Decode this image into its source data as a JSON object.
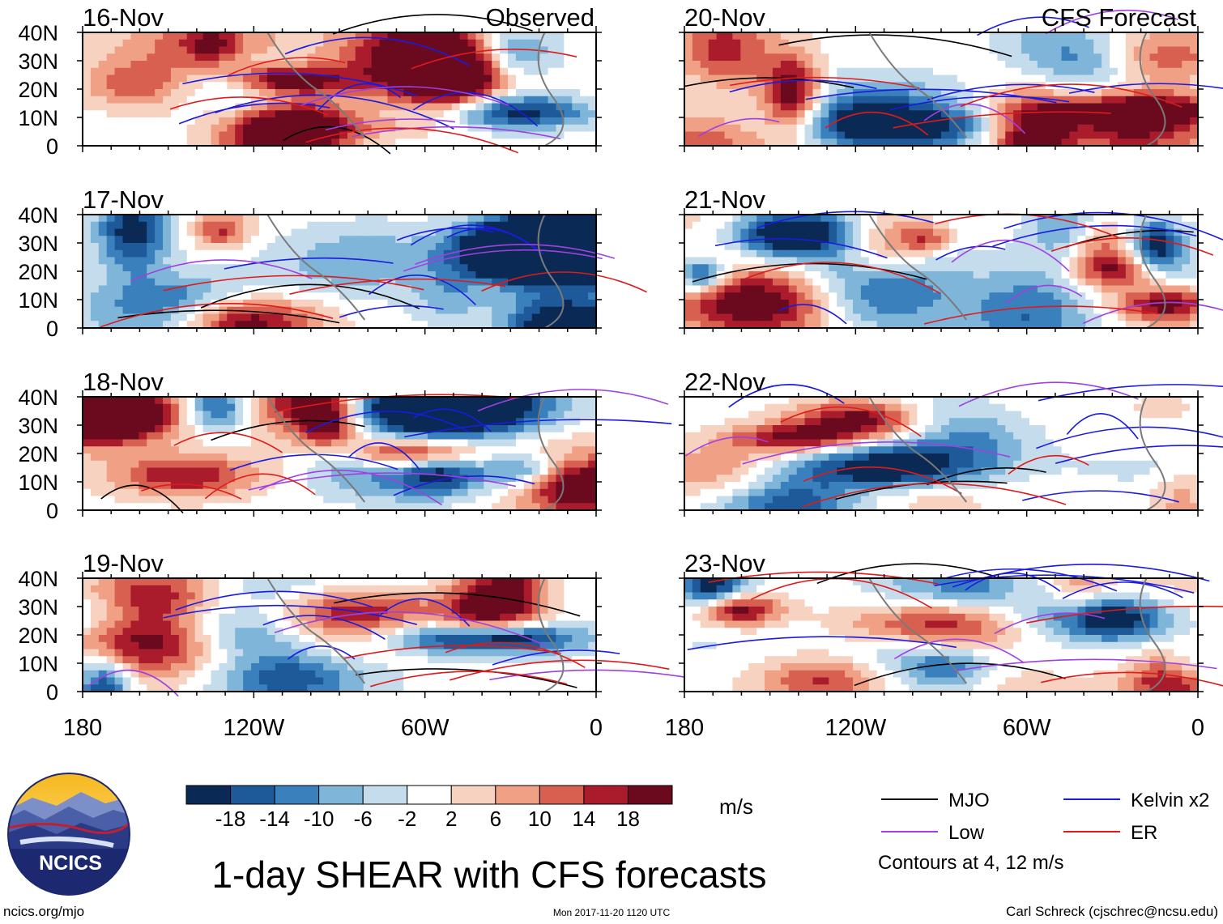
{
  "chart_data": {
    "type": "heatmap",
    "title": "1-day SHEAR with CFS forecasts",
    "variable_units": "m/s",
    "colorbar": {
      "ticks": [
        "-18",
        "-14",
        "-10",
        "-6",
        "-2",
        "2",
        "6",
        "10",
        "14",
        "18"
      ],
      "colors": [
        "#0a2a55",
        "#1e5a9a",
        "#3a80bc",
        "#7fb5d8",
        "#c4dcec",
        "#ffffff",
        "#f8d2c0",
        "#f0a084",
        "#d86050",
        "#aa1c2c",
        "#6b0a1e"
      ]
    },
    "latitude_ticks": [
      "40N",
      "30N",
      "20N",
      "10N",
      "0"
    ],
    "lat_range": [
      0,
      40
    ],
    "longitude_ticks": [
      "180",
      "120W",
      "60W",
      "0"
    ],
    "lon_range": [
      -180,
      0
    ],
    "panel_labels": {
      "observed": "Observed",
      "forecast": "CFS Forecast"
    },
    "panels": [
      {
        "date": "16-Nov",
        "kind": "observed"
      },
      {
        "date": "17-Nov",
        "kind": "observed"
      },
      {
        "date": "18-Nov",
        "kind": "observed"
      },
      {
        "date": "19-Nov",
        "kind": "observed"
      },
      {
        "date": "20-Nov",
        "kind": "forecast"
      },
      {
        "date": "21-Nov",
        "kind": "forecast"
      },
      {
        "date": "22-Nov",
        "kind": "forecast"
      },
      {
        "date": "23-Nov",
        "kind": "forecast"
      }
    ],
    "legend": [
      {
        "label": "MJO",
        "color": "#000000"
      },
      {
        "label": "Kelvin x2",
        "color": "#1a1ae0"
      },
      {
        "label": "Low",
        "color": "#a040e0"
      },
      {
        "label": "ER",
        "color": "#e01a1a"
      }
    ],
    "contour_note": "Contours at 4, 12 m/s"
  },
  "branding": {
    "logo_text": "NCICS"
  },
  "footer": {
    "url": "ncics.org/mjo",
    "timestamp": "Mon 2017-11-20 1120 UTC",
    "author": "Carl Schreck (cjschrec@ncsu.edu)"
  }
}
